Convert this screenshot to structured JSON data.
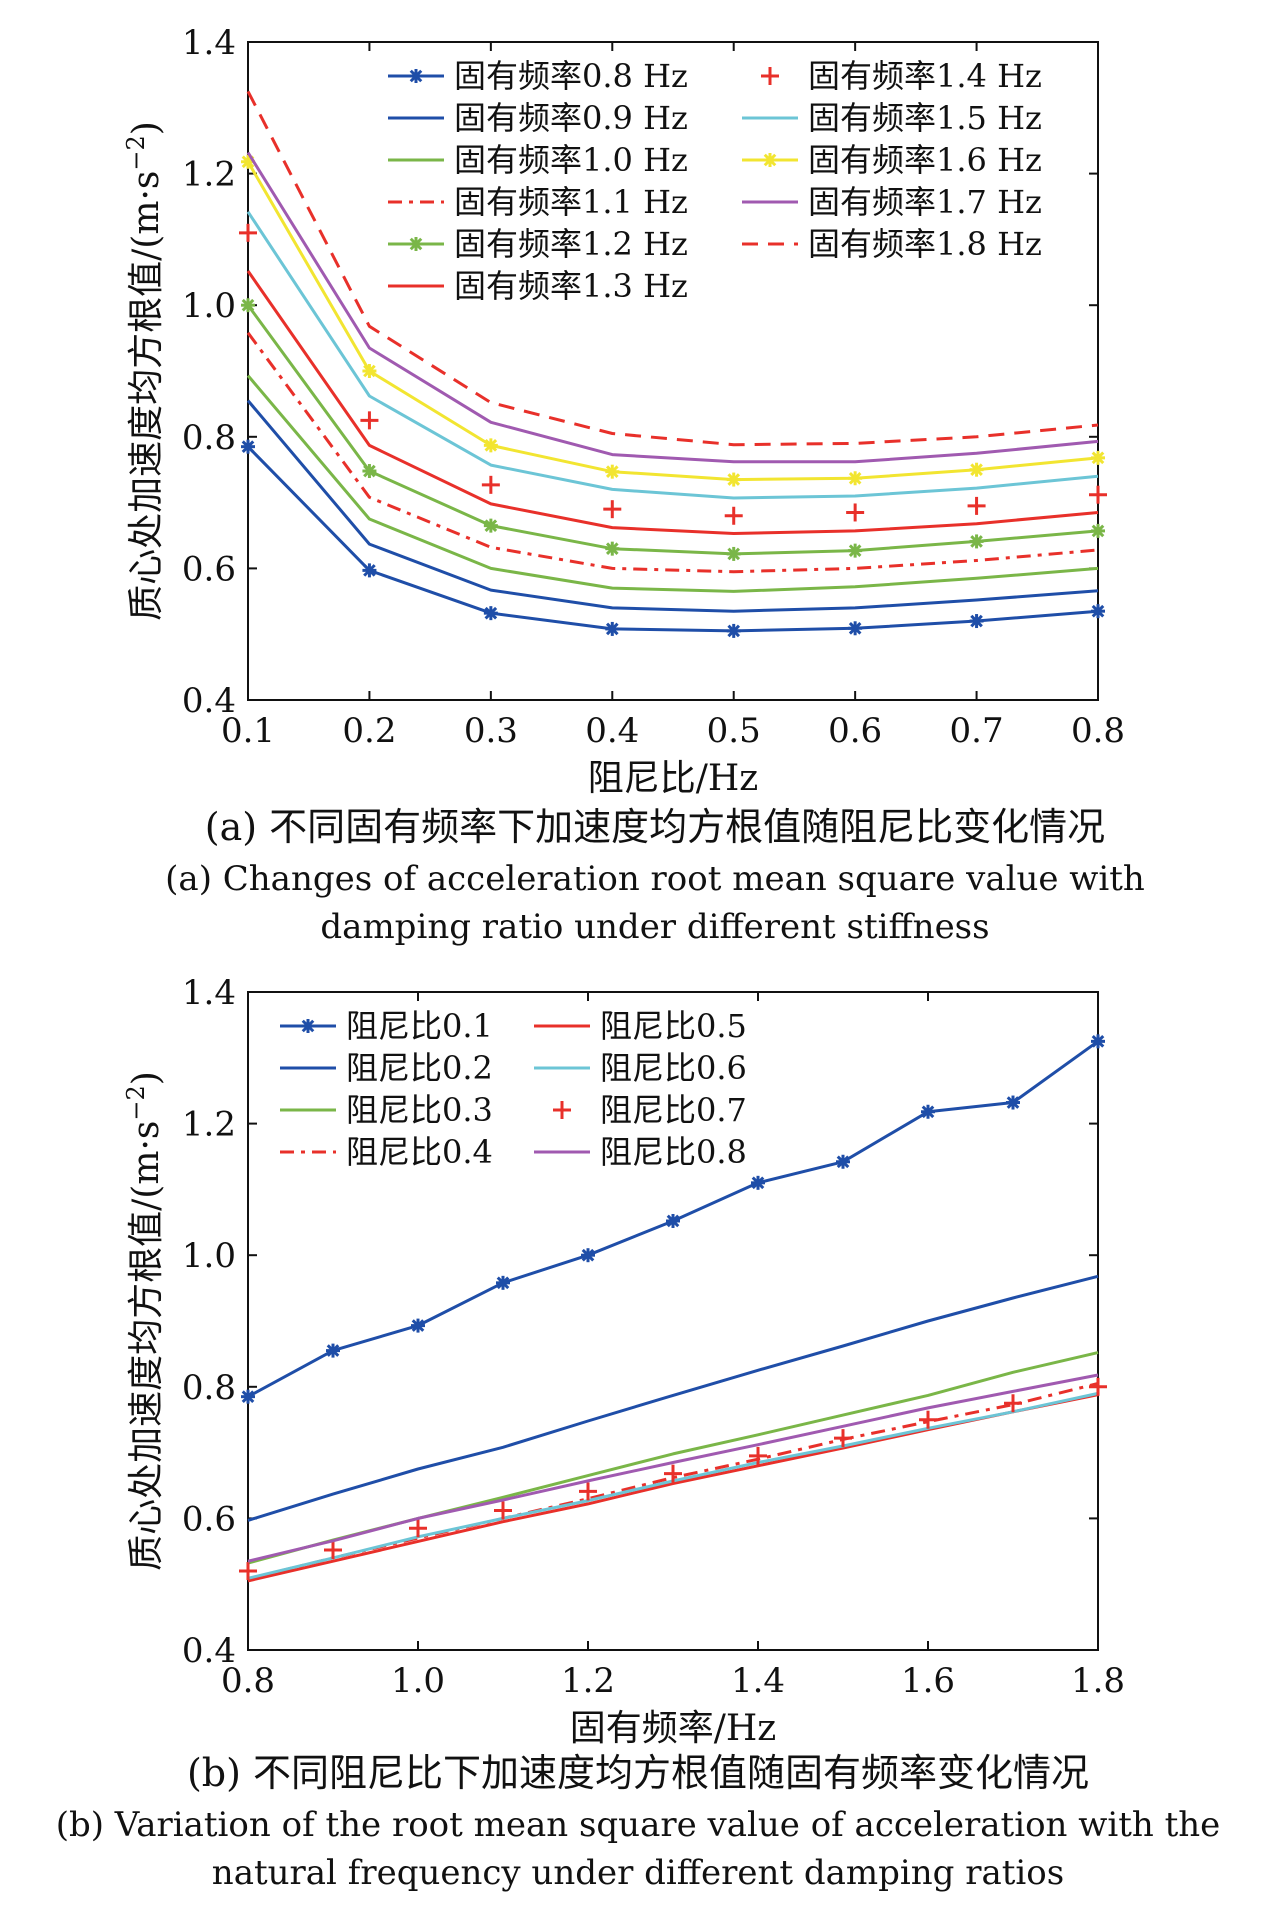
{
  "chart_data": [
    {
      "type": "line",
      "panel": "a",
      "xlabel": "阻尼比/Hz",
      "ylabel": "质心处加速度均方根值/(m·s⁻²)",
      "ylabel_main": "质心处加速度均方根值/(m·s",
      "ylabel_sup": "−2",
      "ylabel_end": ")",
      "xlim": [
        0.1,
        0.8
      ],
      "ylim": [
        0.4,
        1.4
      ],
      "xticks": [
        "0.1",
        "0.2",
        "0.3",
        "0.4",
        "0.5",
        "0.6",
        "0.7",
        "0.8"
      ],
      "yticks": [
        "0.4",
        "0.6",
        "0.8",
        "1.0",
        "1.2",
        "1.4"
      ],
      "legend_position": "top",
      "caption_cn": "(a) 不同固有频率下加速度均方根值随阻尼比变化情况",
      "caption_en_1": "(a) Changes of acceleration root mean square value with",
      "caption_en_2": "damping ratio under different stiffness",
      "x": [
        0.1,
        0.2,
        0.3,
        0.4,
        0.5,
        0.6,
        0.7,
        0.8
      ],
      "series": [
        {
          "name": "固有频率0.8 Hz",
          "color": "#1f4ea8",
          "style": "solid-star",
          "values": [
            0.785,
            0.597,
            0.532,
            0.508,
            0.505,
            0.509,
            0.52,
            0.535
          ]
        },
        {
          "name": "固有频率0.9 Hz",
          "color": "#1f4ea8",
          "style": "solid",
          "values": [
            0.855,
            0.637,
            0.567,
            0.54,
            0.535,
            0.54,
            0.552,
            0.566
          ]
        },
        {
          "name": "固有频率1.0 Hz",
          "color": "#7ab648",
          "style": "solid",
          "values": [
            0.893,
            0.675,
            0.6,
            0.57,
            0.565,
            0.572,
            0.585,
            0.6
          ]
        },
        {
          "name": "固有频率1.1 Hz",
          "color": "#e8302a",
          "style": "dashdot",
          "values": [
            0.958,
            0.708,
            0.632,
            0.6,
            0.595,
            0.6,
            0.612,
            0.628
          ]
        },
        {
          "name": "固有频率1.2 Hz",
          "color": "#7ab648",
          "style": "solid-star",
          "values": [
            1.0,
            0.748,
            0.665,
            0.63,
            0.622,
            0.627,
            0.641,
            0.657
          ]
        },
        {
          "name": "固有频率1.3 Hz",
          "color": "#e8302a",
          "style": "solid",
          "values": [
            1.052,
            0.787,
            0.698,
            0.662,
            0.653,
            0.657,
            0.668,
            0.685
          ]
        },
        {
          "name": "固有频率1.4 Hz",
          "color": "#e8302a",
          "style": "plus",
          "values": [
            1.11,
            0.825,
            0.727,
            0.69,
            0.68,
            0.685,
            0.695,
            0.712
          ]
        },
        {
          "name": "固有频率1.5 Hz",
          "color": "#6cc5d6",
          "style": "solid",
          "values": [
            1.142,
            0.862,
            0.757,
            0.72,
            0.707,
            0.71,
            0.722,
            0.74
          ]
        },
        {
          "name": "固有频率1.6 Hz",
          "color": "#f2e531",
          "style": "solid-star",
          "values": [
            1.218,
            0.9,
            0.787,
            0.747,
            0.735,
            0.737,
            0.75,
            0.768
          ]
        },
        {
          "name": "固有频率1.7 Hz",
          "color": "#a05ab0",
          "style": "solid",
          "values": [
            1.232,
            0.935,
            0.822,
            0.773,
            0.762,
            0.762,
            0.775,
            0.793
          ]
        },
        {
          "name": "固有频率1.8 Hz",
          "color": "#e8302a",
          "style": "dashed",
          "values": [
            1.325,
            0.968,
            0.852,
            0.805,
            0.788,
            0.79,
            0.8,
            0.818
          ]
        }
      ]
    },
    {
      "type": "line",
      "panel": "b",
      "xlabel": "固有频率/Hz",
      "ylabel": "质心处加速度均方根值/(m·s⁻²)",
      "ylabel_main": "质心处加速度均方根值/(m·s",
      "ylabel_sup": "−2",
      "ylabel_end": ")",
      "xlim": [
        0.8,
        1.8
      ],
      "ylim": [
        0.4,
        1.4
      ],
      "xticks": [
        "0.8",
        "1.0",
        "1.2",
        "1.4",
        "1.6",
        "1.8"
      ],
      "yticks": [
        "0.4",
        "0.6",
        "0.8",
        "1.0",
        "1.2",
        "1.4"
      ],
      "legend_position": "top-left",
      "caption_cn": "(b) 不同阻尼比下加速度均方根值随固有频率变化情况",
      "caption_en_1": "(b) Variation of the root mean square value of acceleration with the",
      "caption_en_2": "natural frequency under different damping ratios",
      "x": [
        0.8,
        0.9,
        1.0,
        1.1,
        1.2,
        1.3,
        1.4,
        1.5,
        1.6,
        1.7,
        1.8
      ],
      "series": [
        {
          "name": "阻尼比0.1",
          "color": "#1f4ea8",
          "style": "solid-star",
          "values": [
            0.785,
            0.855,
            0.893,
            0.958,
            1.0,
            1.052,
            1.11,
            1.142,
            1.218,
            1.232,
            1.325
          ]
        },
        {
          "name": "阻尼比0.2",
          "color": "#1f4ea8",
          "style": "solid",
          "values": [
            0.597,
            0.637,
            0.675,
            0.708,
            0.748,
            0.787,
            0.825,
            0.862,
            0.9,
            0.935,
            0.968
          ]
        },
        {
          "name": "阻尼比0.3",
          "color": "#7ab648",
          "style": "solid",
          "values": [
            0.532,
            0.567,
            0.6,
            0.632,
            0.665,
            0.698,
            0.727,
            0.757,
            0.787,
            0.822,
            0.852
          ]
        },
        {
          "name": "阻尼比0.4",
          "color": "#e8302a",
          "style": "dashdot",
          "values": [
            0.508,
            0.54,
            0.57,
            0.6,
            0.63,
            0.662,
            0.69,
            0.72,
            0.747,
            0.773,
            0.805
          ]
        },
        {
          "name": "阻尼比0.5",
          "color": "#e8302a",
          "style": "solid",
          "values": [
            0.505,
            0.535,
            0.565,
            0.595,
            0.622,
            0.653,
            0.68,
            0.707,
            0.735,
            0.762,
            0.788
          ]
        },
        {
          "name": "阻尼比0.6",
          "color": "#6cc5d6",
          "style": "solid",
          "values": [
            0.509,
            0.54,
            0.572,
            0.6,
            0.627,
            0.657,
            0.685,
            0.71,
            0.737,
            0.762,
            0.79
          ]
        },
        {
          "name": "阻尼比0.7",
          "color": "#e8302a",
          "style": "plus",
          "values": [
            0.52,
            0.552,
            0.585,
            0.612,
            0.641,
            0.668,
            0.695,
            0.722,
            0.75,
            0.775,
            0.8
          ]
        },
        {
          "name": "阻尼比0.8",
          "color": "#a05ab0",
          "style": "solid",
          "values": [
            0.535,
            0.566,
            0.6,
            0.628,
            0.657,
            0.685,
            0.712,
            0.74,
            0.768,
            0.793,
            0.818
          ]
        }
      ]
    }
  ]
}
